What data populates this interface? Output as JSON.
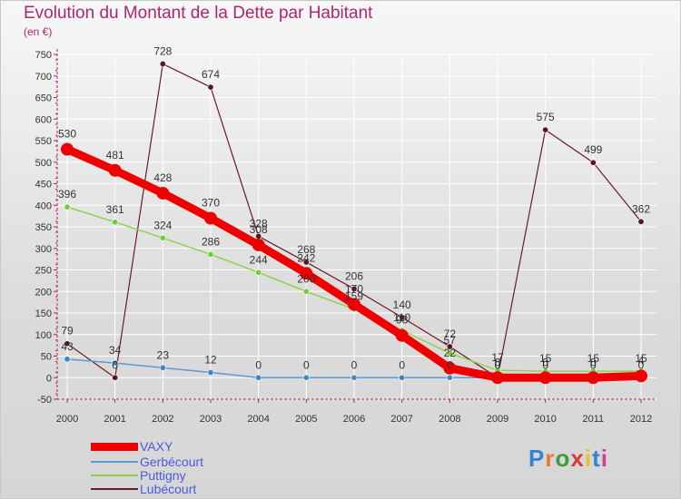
{
  "chart_data": {
    "type": "line",
    "title": "Evolution du Montant de la Dette par Habitant",
    "subtitle": "(en €)",
    "categories": [
      "2000",
      "2001",
      "2002",
      "2003",
      "2004",
      "2005",
      "2006",
      "2007",
      "2008",
      "2009",
      "2010",
      "2011",
      "2012"
    ],
    "ylim": [
      -50,
      750
    ],
    "yticks": [
      -50,
      0,
      50,
      100,
      150,
      200,
      250,
      300,
      350,
      400,
      450,
      500,
      550,
      600,
      650,
      700,
      750
    ],
    "grid": true,
    "series": [
      {
        "name": "VAXY",
        "color": "#ee0000",
        "values": [
          530,
          481,
          428,
          370,
          308,
          242,
          170,
          98,
          22,
          0,
          0,
          0,
          4
        ]
      },
      {
        "name": "Gerbécourt",
        "color": "#5b9bd5",
        "values": [
          43,
          34,
          23,
          12,
          0,
          0,
          0,
          0,
          0,
          0,
          0,
          0,
          0
        ]
      },
      {
        "name": "Puttigny",
        "color": "#92d050",
        "values": [
          396,
          361,
          324,
          286,
          244,
          200,
          159,
          110,
          57,
          17,
          15,
          15,
          15
        ]
      },
      {
        "name": "Lubécourt",
        "color": "#6b1c28",
        "values": [
          79,
          0,
          728,
          674,
          328,
          268,
          206,
          140,
          72,
          0,
          575,
          499,
          362
        ]
      }
    ]
  },
  "legend_labels": [
    "VAXY",
    "Gerbécourt",
    "Puttigny",
    "Lubécourt"
  ],
  "logo_text": "Proxiti"
}
